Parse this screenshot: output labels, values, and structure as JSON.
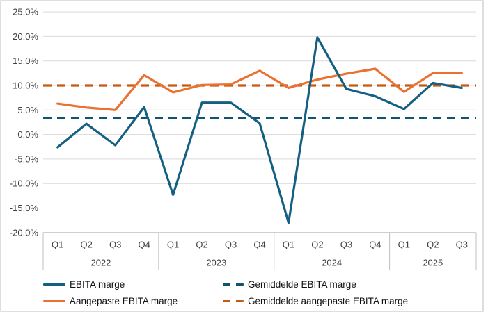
{
  "frame": {
    "background": "#FFFFFF",
    "border_color": "#C8C8C8",
    "gridline_color": "#D9D9D9",
    "axis_line_color": "#BFBFBF",
    "axis_text_color": "#404040"
  },
  "chart_data": {
    "type": "line",
    "title": "",
    "x_categories": {
      "quarters": [
        "Q1",
        "Q2",
        "Q3",
        "Q4",
        "Q1",
        "Q2",
        "Q3",
        "Q4",
        "Q1",
        "Q2",
        "Q3",
        "Q4",
        "Q1",
        "Q2",
        "Q3"
      ],
      "year_groups": [
        {
          "label": "2022",
          "count": 4
        },
        {
          "label": "2023",
          "count": 4
        },
        {
          "label": "2024",
          "count": 4
        },
        {
          "label": "2025",
          "count": 3
        }
      ]
    },
    "y_axis": {
      "min": -20,
      "max": 25,
      "step": 5,
      "tick_labels": [
        "25,0%",
        "20,0%",
        "15,0%",
        "10,0%",
        "5,0%",
        "0,0%",
        "-5,0%",
        "-10,0%",
        "-15,0%",
        "-20,0%"
      ],
      "number_format": "percent-nl"
    },
    "grid": true,
    "legend_position": "bottom",
    "series": [
      {
        "name": "EBITA marge",
        "color": "#156082",
        "style": "solid",
        "values": [
          -2.6,
          2.2,
          -2.2,
          5.6,
          -12.3,
          6.5,
          6.5,
          2.3,
          -18.0,
          19.8,
          9.3,
          7.8,
          5.2,
          10.5,
          9.5
        ]
      },
      {
        "name": "Aangepaste EBITA marge",
        "color": "#E97132",
        "style": "solid",
        "values": [
          6.3,
          5.5,
          5.0,
          12.1,
          8.6,
          10.1,
          10.2,
          13.0,
          9.5,
          11.2,
          12.4,
          13.4,
          8.7,
          12.5,
          12.5
        ]
      },
      {
        "name": "Gemiddelde EBITA marge",
        "color": "#11546E",
        "style": "dashed",
        "constant": 3.3
      },
      {
        "name": "Gemiddelde aangepaste EBITA marge",
        "color": "#C55A11",
        "style": "dashed",
        "constant": 10.0
      }
    ]
  }
}
